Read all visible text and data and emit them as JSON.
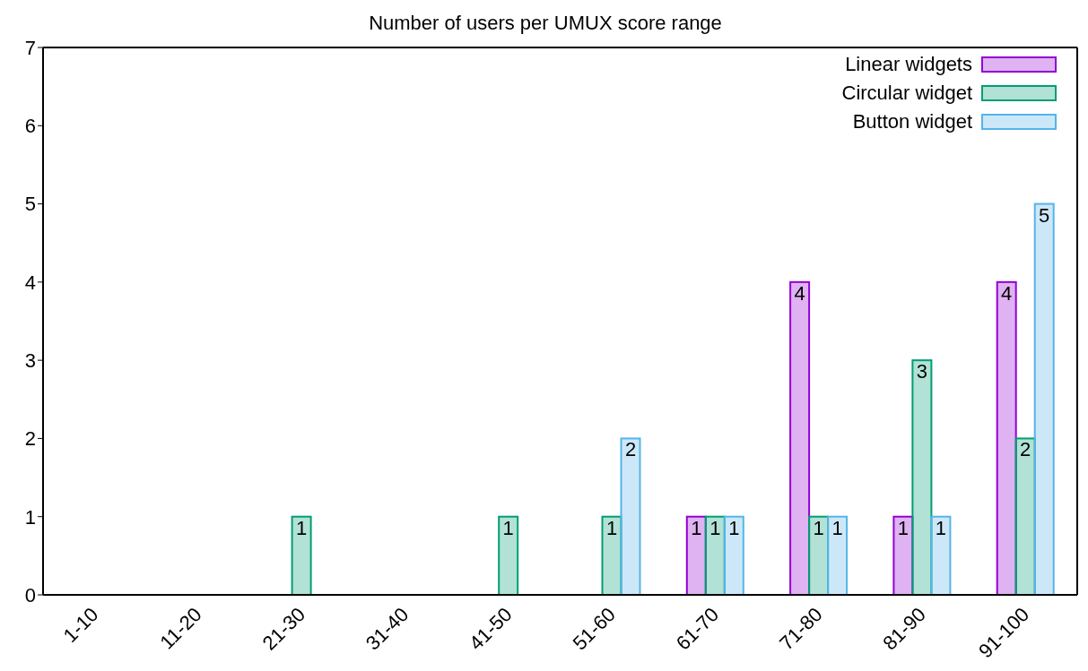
{
  "chart_data": {
    "type": "bar",
    "title": "Number of users per UMUX score range",
    "categories": [
      "1-10",
      "11-20",
      "21-30",
      "31-40",
      "41-50",
      "51-60",
      "61-70",
      "71-80",
      "81-90",
      "91-100"
    ],
    "series": [
      {
        "name": "Linear widgets",
        "color": "#9400d3",
        "values": [
          0,
          0,
          0,
          0,
          0,
          0,
          1,
          4,
          1,
          4
        ],
        "value_labels": [
          null,
          null,
          null,
          null,
          null,
          null,
          "1",
          "4",
          "1",
          "4"
        ]
      },
      {
        "name": "Circular widget",
        "color": "#009e73",
        "values": [
          0,
          0,
          1,
          0,
          1,
          1,
          1,
          1,
          3,
          2
        ],
        "value_labels": [
          null,
          null,
          "1",
          null,
          "1",
          "1",
          "1",
          "1",
          "3",
          "2"
        ]
      },
      {
        "name": "Button widget",
        "color": "#56b4e9",
        "values": [
          0,
          0,
          0,
          0,
          0,
          2,
          1,
          1,
          1,
          5
        ],
        "value_labels": [
          null,
          null,
          null,
          null,
          null,
          "2",
          "1",
          "1",
          "1",
          "5"
        ]
      }
    ],
    "ylim": [
      0,
      7
    ],
    "yticks": [
      0,
      1,
      2,
      3,
      4,
      5,
      6,
      7
    ],
    "grid": false,
    "legend": "top right"
  }
}
